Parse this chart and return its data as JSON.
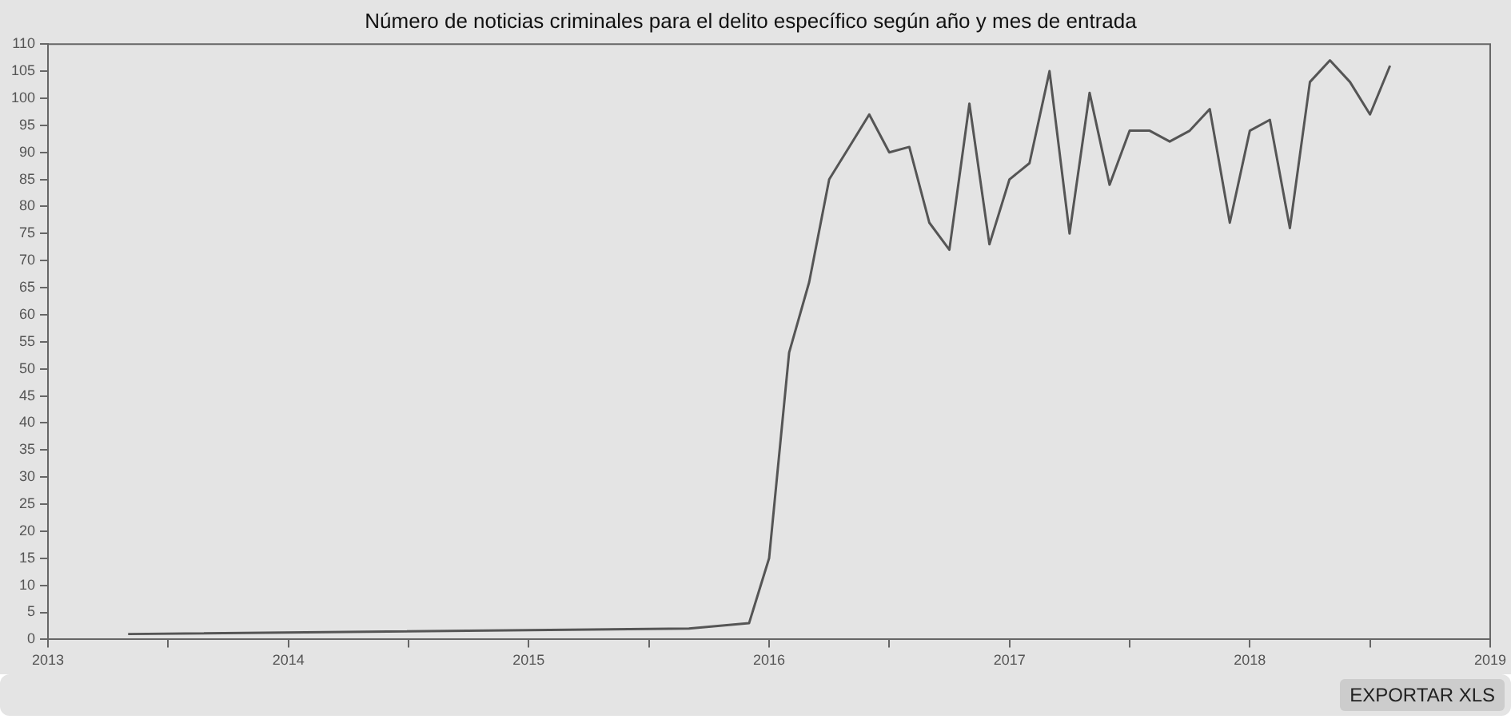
{
  "chart_data": {
    "type": "line",
    "title": "Número de noticias criminales para el delito específico según año y mes de entrada",
    "x": [
      "2013-05",
      "2015-09",
      "2015-12",
      "2016-01",
      "2016-02",
      "2016-03",
      "2016-04",
      "2016-05",
      "2016-06",
      "2016-07",
      "2016-08",
      "2016-09",
      "2016-10",
      "2016-11",
      "2016-12",
      "2017-01",
      "2017-02",
      "2017-03",
      "2017-04",
      "2017-05",
      "2017-06",
      "2017-07",
      "2017-08",
      "2017-09",
      "2017-10",
      "2017-11",
      "2017-12",
      "2018-01",
      "2018-02",
      "2018-03",
      "2018-04",
      "2018-05",
      "2018-06",
      "2018-07",
      "2018-08"
    ],
    "series": [
      {
        "color": "#555555",
        "values": [
          1,
          2,
          3,
          15,
          53,
          66,
          85,
          91,
          97,
          90,
          91,
          77,
          72,
          99,
          73,
          85,
          88,
          105,
          75,
          101,
          84,
          94,
          94,
          92,
          94,
          98,
          77,
          94,
          96,
          76,
          103,
          107,
          103,
          97,
          106
        ]
      }
    ],
    "xlim": [
      "2013",
      "2019"
    ],
    "xticks": [
      "2013",
      {
        "value": "2013-07",
        "label": null
      },
      "2014",
      {
        "value": "2014-07",
        "label": null
      },
      "2015",
      {
        "value": "2015-07",
        "label": null
      },
      "2016",
      {
        "value": "2016-07",
        "label": null
      },
      "2017",
      {
        "value": "2017-07",
        "label": null
      },
      "2018",
      {
        "value": "2018-07",
        "label": null
      },
      "2019"
    ],
    "ylim": [
      0,
      110
    ],
    "yticks": [
      0,
      5,
      10,
      15,
      20,
      25,
      30,
      35,
      40,
      45,
      50,
      55,
      60,
      65,
      70,
      75,
      80,
      85,
      90,
      95,
      100,
      105,
      110
    ],
    "grid": false,
    "legend": false,
    "marker": "none",
    "line_style": "solid",
    "annotations": [
      "EXPORTAR XLS"
    ]
  }
}
